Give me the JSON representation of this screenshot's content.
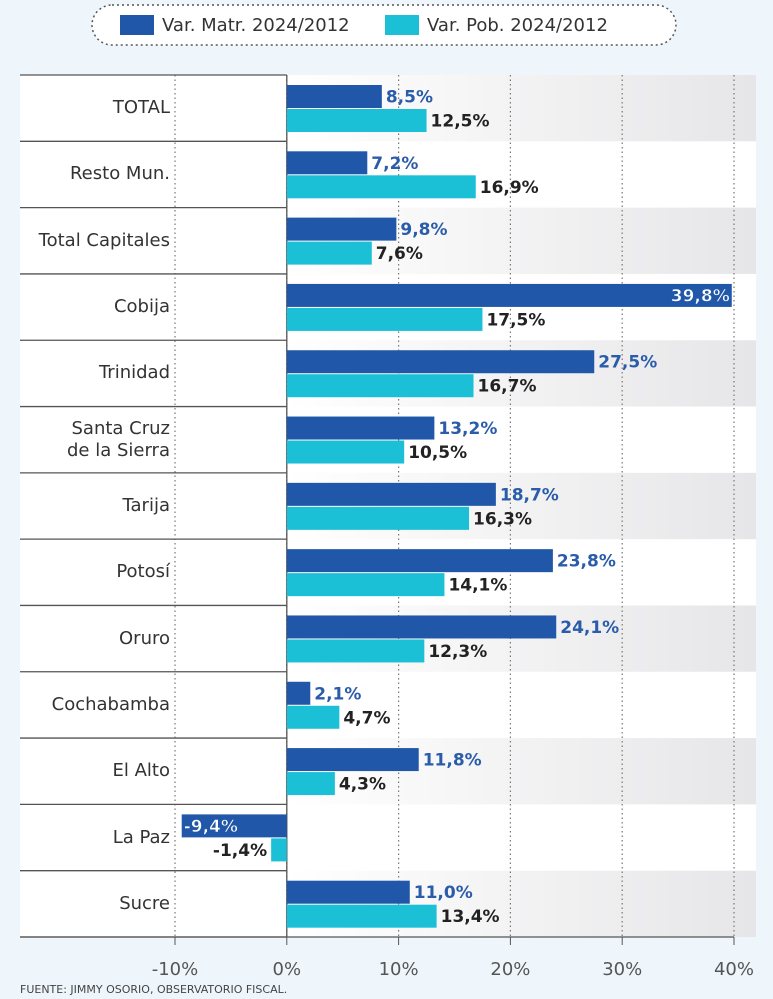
{
  "chart_data": {
    "type": "hbar",
    "legend_position": "top",
    "categories": [
      "TOTAL",
      "Resto Mun.",
      "Total Capitales",
      "Cobija",
      "Trinidad",
      "Santa Cruz\nde la Sierra",
      "Tarija",
      "Potosí",
      "Oruro",
      "Cochabamba",
      "El Alto",
      "La Paz",
      "Sucre"
    ],
    "series": [
      {
        "name": "Var. Matr. 2024/2012",
        "color": "#2157a8",
        "values": [
          8.5,
          7.2,
          9.8,
          39.8,
          27.5,
          13.2,
          18.7,
          23.8,
          24.1,
          2.1,
          11.8,
          -9.4,
          11.0
        ],
        "value_labels": [
          "8,5%",
          "7,2%",
          "9,8%",
          "39,8%",
          "27,5%",
          "13,2%",
          "18,7%",
          "23,8%",
          "24,1%",
          "2,1%",
          "11,8%",
          "-9,4%",
          "11,0%"
        ]
      },
      {
        "name": "Var. Pob. 2024/2012",
        "color": "#1cc0d6",
        "values": [
          12.5,
          16.9,
          7.6,
          17.5,
          16.7,
          10.5,
          16.3,
          14.1,
          12.3,
          4.7,
          4.3,
          -1.4,
          13.4
        ],
        "value_labels": [
          "12,5%",
          "16,9%",
          "7,6%",
          "17,5%",
          "16,7%",
          "10,5%",
          "16,3%",
          "14,1%",
          "12,3%",
          "4,7%",
          "4,3%",
          "-1,4%",
          "13,4%"
        ]
      }
    ],
    "xlim": [
      -10,
      40
    ],
    "xticks": [
      {
        "value": -10,
        "label": "-10%"
      },
      {
        "value": 0,
        "label": "0%"
      },
      {
        "value": 10,
        "label": "10%"
      },
      {
        "value": 20,
        "label": "20%"
      },
      {
        "value": 30,
        "label": "30%"
      },
      {
        "value": 40,
        "label": "40%"
      }
    ],
    "grid": true,
    "source": "FUENTE: JIMMY OSORIO, OBSERVATORIO FISCAL."
  }
}
